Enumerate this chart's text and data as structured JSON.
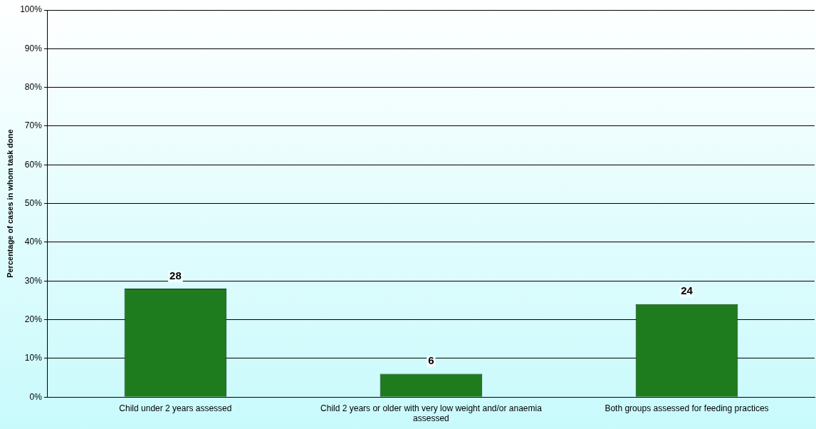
{
  "chart_data": {
    "type": "bar",
    "ylabel": "Percentage of cases in whom task done",
    "categories": [
      "Child under 2 years assessed",
      "Child 2 years or older with very low weight and/or anaemia assessed",
      "Both groups assessed for feeding practices"
    ],
    "values": [
      28,
      6,
      24
    ],
    "color": "#1e7b1e",
    "data_labels": true,
    "ylim": [
      0,
      100
    ],
    "yticks": [
      {
        "value": 0,
        "label": "0%"
      },
      {
        "value": 10,
        "label": "10%"
      },
      {
        "value": 20,
        "label": "20%"
      },
      {
        "value": 30,
        "label": "30%"
      },
      {
        "value": 40,
        "label": "40%"
      },
      {
        "value": 50,
        "label": "50%"
      },
      {
        "value": 60,
        "label": "60%"
      },
      {
        "value": 70,
        "label": "70%"
      },
      {
        "value": 80,
        "label": "80%"
      },
      {
        "value": 90,
        "label": "90%"
      },
      {
        "value": 100,
        "label": "100%"
      }
    ],
    "grid": "y",
    "legend": false
  }
}
